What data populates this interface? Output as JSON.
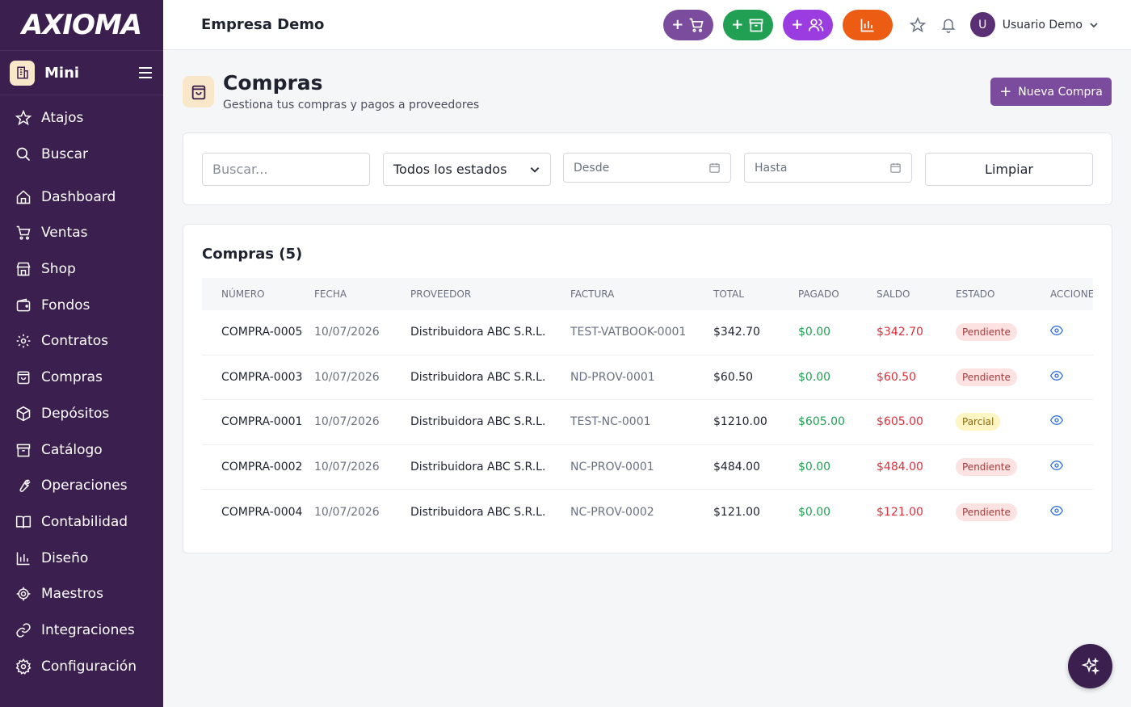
{
  "app": {
    "logo_text": "AXIOMA",
    "mini_label": "Mini"
  },
  "sidebar": {
    "items": [
      {
        "label": "Atajos",
        "icon": "star-icon"
      },
      {
        "label": "Buscar",
        "icon": "search-icon"
      },
      {
        "label": "Dashboard",
        "icon": "home-icon"
      },
      {
        "label": "Ventas",
        "icon": "cart-icon"
      },
      {
        "label": "Shop",
        "icon": "store-icon"
      },
      {
        "label": "Fondos",
        "icon": "wallet-icon"
      },
      {
        "label": "Contratos",
        "icon": "gear-icon"
      },
      {
        "label": "Compras",
        "icon": "shopping-bag-icon"
      },
      {
        "label": "Depósitos",
        "icon": "package-icon"
      },
      {
        "label": "Catálogo",
        "icon": "archive-icon"
      },
      {
        "label": "Operaciones",
        "icon": "wrench-icon"
      },
      {
        "label": "Contabilidad",
        "icon": "book-icon"
      },
      {
        "label": "Diseño",
        "icon": "bar-chart-icon"
      },
      {
        "label": "Maestros",
        "icon": "cog-icon"
      },
      {
        "label": "Integraciones",
        "icon": "link-icon"
      },
      {
        "label": "Configuración",
        "icon": "settings-icon"
      }
    ]
  },
  "topbar": {
    "company": "Empresa Demo",
    "quick_actions": [
      {
        "label": "+",
        "icon": "cart-icon",
        "color": "#7b4c9e"
      },
      {
        "label": "+",
        "icon": "archive-icon",
        "color": "#21a053"
      },
      {
        "label": "+",
        "icon": "users-icon",
        "color": "#9a3ce0"
      },
      {
        "label": "",
        "icon": "bar-chart-icon",
        "color": "#ec5c13"
      }
    ],
    "user_initial": "U",
    "user_name": "Usuario Demo"
  },
  "page": {
    "title": "Compras",
    "subtitle": "Gestiona tus compras y pagos a proveedores",
    "new_button": "Nueva Compra"
  },
  "filters": {
    "search_placeholder": "Buscar...",
    "status_selected": "Todos los estados",
    "from_placeholder": "Desde",
    "to_placeholder": "Hasta",
    "clear_label": "Limpiar"
  },
  "table": {
    "title": "Compras (5)",
    "columns": [
      "NÚMERO",
      "FECHA",
      "PROVEEDOR",
      "FACTURA",
      "TOTAL",
      "PAGADO",
      "SALDO",
      "ESTADO",
      "ACCIONES"
    ],
    "rows": [
      {
        "numero": "COMPRA-0005",
        "fecha": "10/07/2026",
        "proveedor": "Distribuidora ABC S.R.L.",
        "factura": "TEST-VATBOOK-0001",
        "total": "$342.70",
        "pagado": "$0.00",
        "saldo": "$342.70",
        "estado": "Pendiente"
      },
      {
        "numero": "COMPRA-0003",
        "fecha": "10/07/2026",
        "proveedor": "Distribuidora ABC S.R.L.",
        "factura": "ND-PROV-0001",
        "total": "$60.50",
        "pagado": "$0.00",
        "saldo": "$60.50",
        "estado": "Pendiente"
      },
      {
        "numero": "COMPRA-0001",
        "fecha": "10/07/2026",
        "proveedor": "Distribuidora ABC S.R.L.",
        "factura": "TEST-NC-0001",
        "total": "$1210.00",
        "pagado": "$605.00",
        "saldo": "$605.00",
        "estado": "Parcial"
      },
      {
        "numero": "COMPRA-0002",
        "fecha": "10/07/2026",
        "proveedor": "Distribuidora ABC S.R.L.",
        "factura": "NC-PROV-0001",
        "total": "$484.00",
        "pagado": "$0.00",
        "saldo": "$484.00",
        "estado": "Pendiente"
      },
      {
        "numero": "COMPRA-0004",
        "fecha": "10/07/2026",
        "proveedor": "Distribuidora ABC S.R.L.",
        "factura": "NC-PROV-0002",
        "total": "$121.00",
        "pagado": "$0.00",
        "saldo": "$121.00",
        "estado": "Pendiente"
      }
    ]
  },
  "colors": {
    "sidebar_bg": "#3b1f4f",
    "accent": "#7b4c9e",
    "paid": "#21a053",
    "balance": "#e12d39"
  }
}
